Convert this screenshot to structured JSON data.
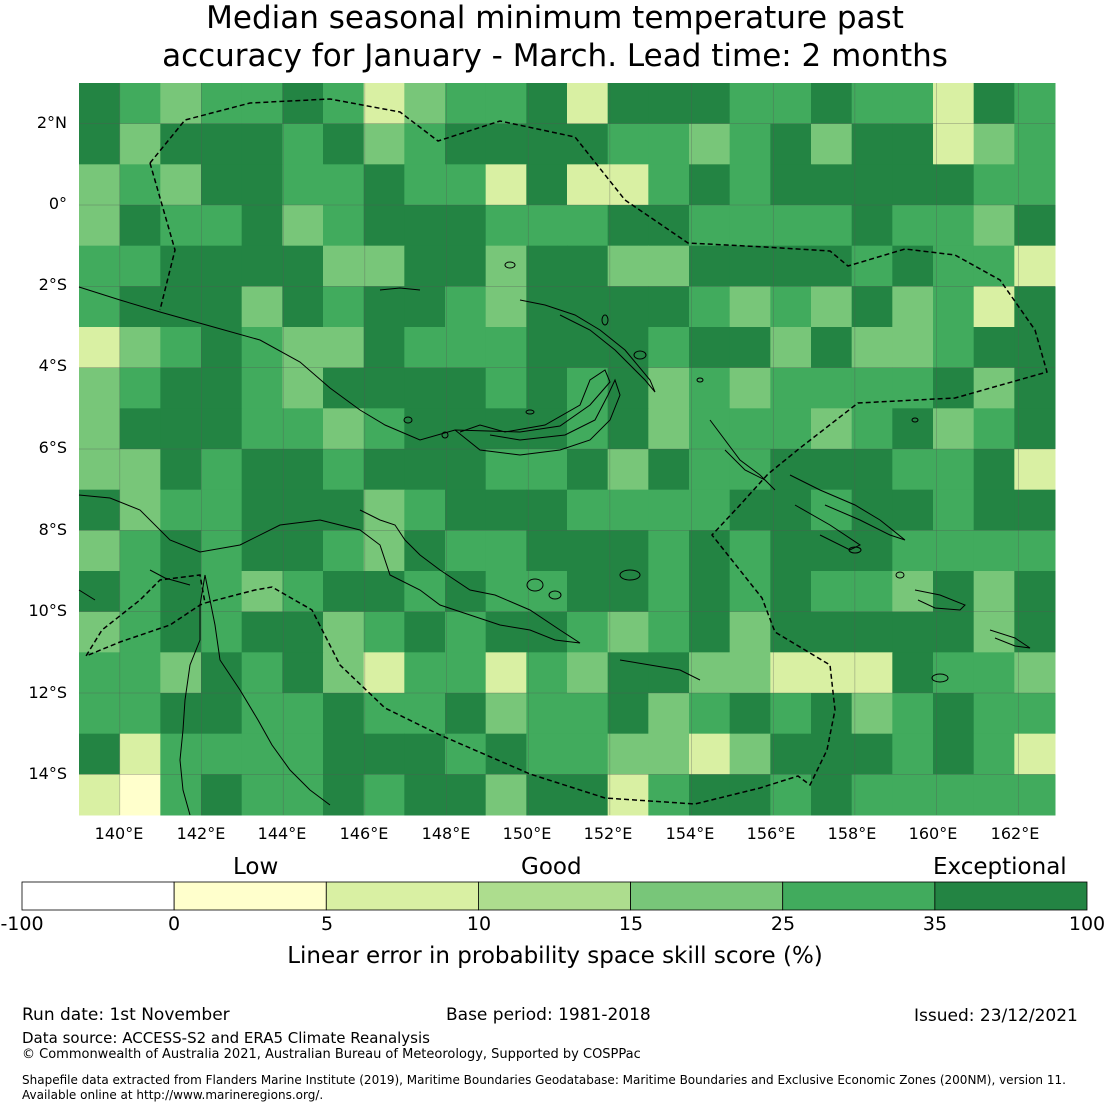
{
  "title": {
    "line1": "Median seasonal minimum temperature past",
    "line2": "accuracy for January - March. Lead time: 2 months"
  },
  "map": {
    "lat_labels": [
      "2°N",
      "0°",
      "2°S",
      "4°S",
      "6°S",
      "8°S",
      "10°S",
      "12°S",
      "14°S"
    ],
    "lon_labels": [
      "140°E",
      "142°E",
      "144°E",
      "146°E",
      "148°E",
      "150°E",
      "152°E",
      "154°E",
      "156°E",
      "158°E",
      "160°E",
      "162°E"
    ],
    "extent": {
      "lon_min": 139.0,
      "lon_max": 162.9,
      "lat_min": -15.0,
      "lat_max": 3.0
    }
  },
  "colorbar": {
    "category_labels": [
      "Low",
      "Good",
      "Exceptional"
    ],
    "boundaries": [
      "-100",
      "0",
      "5",
      "10",
      "15",
      "25",
      "35",
      "100"
    ],
    "colors": [
      "#ffffff",
      "#ffffcc",
      "#d9f0a3",
      "#addd8e",
      "#78c679",
      "#41ab5d",
      "#238443"
    ],
    "label": "Linear error in probability space skill score (%)"
  },
  "footer": {
    "run_date": "Run date: 1st November",
    "base_period": "Base period: 1981-2018",
    "issued": "Issued: 23/12/2021",
    "data_source": "Data source: ACCESS-S2 and ERA5 Climate Reanalysis",
    "copyright": "© Commonwealth of Australia 2021, Australian Bureau of Meteorology, Supported by COSPPac",
    "shapefile_1": "Shapefile data extracted from Flanders Marine Institute (2019), Maritime Boundaries Geodatabase: Maritime Boundaries and Exclusive Economic Zones (200NM), version 11.",
    "shapefile_2": "Available online at http://www.marineregions.org/."
  }
}
